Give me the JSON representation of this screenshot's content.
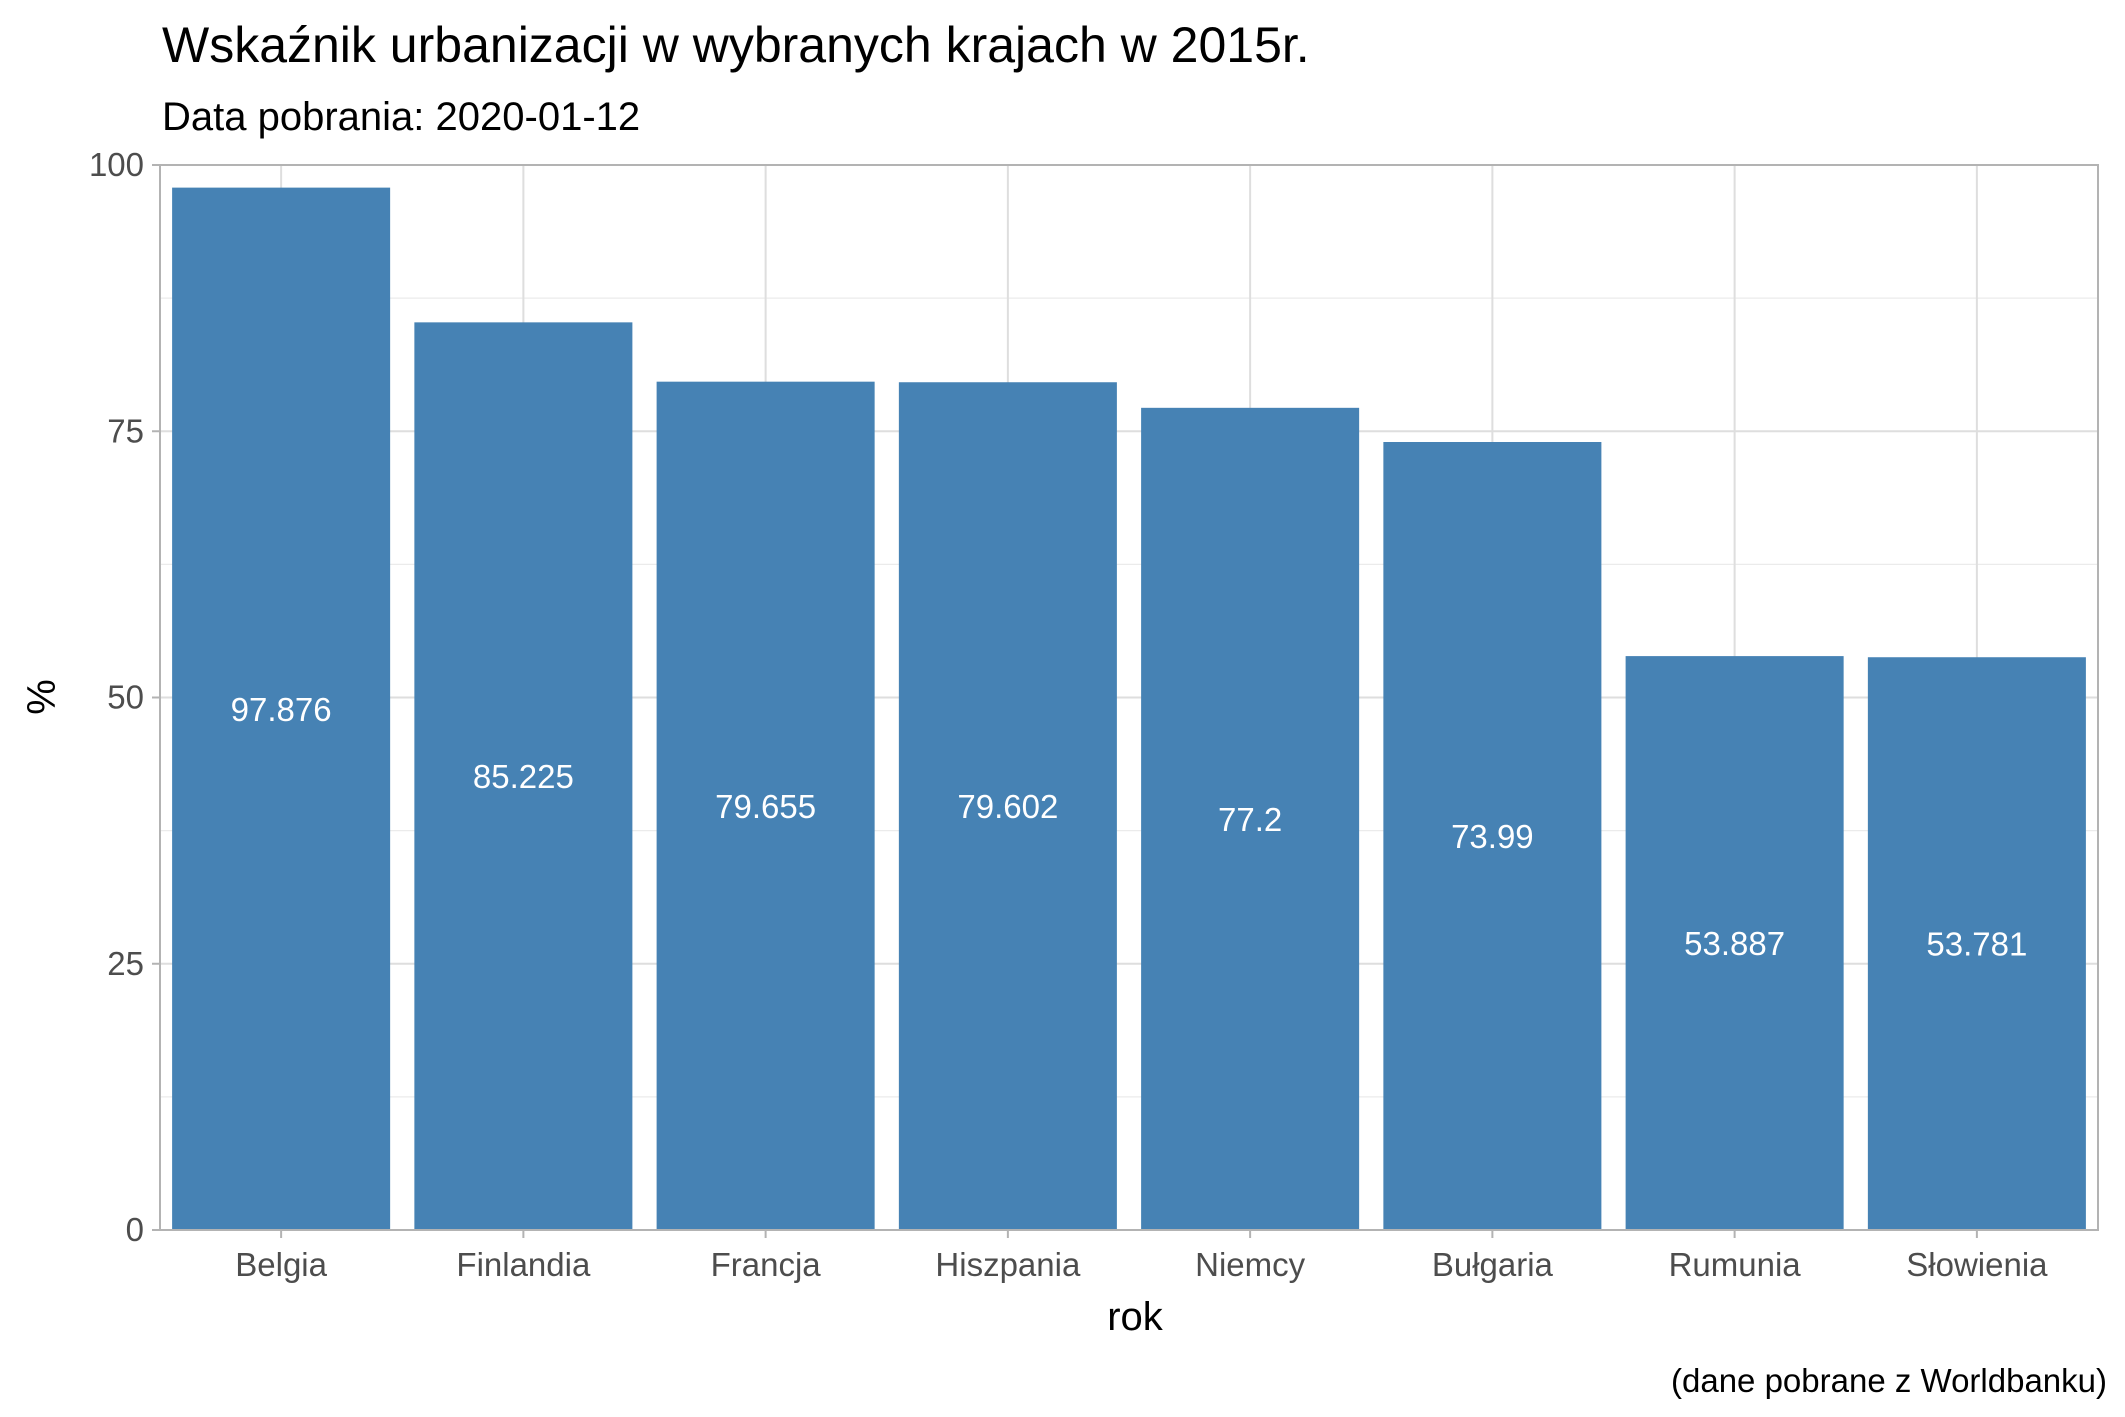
{
  "chart_data": {
    "type": "bar",
    "title": "Wskaźnik urbanizacji w wybranych krajach w 2015r.",
    "subtitle": "Data pobrania: 2020-01-12",
    "xlabel": "rok",
    "ylabel": "%",
    "caption": "(dane pobrane z Worldbanku)",
    "categories": [
      "Belgia",
      "Finlandia",
      "Francja",
      "Hiszpania",
      "Niemcy",
      "Bułgaria",
      "Rumunia",
      "Słowienia"
    ],
    "values": [
      97.876,
      85.225,
      79.655,
      79.602,
      77.2,
      73.99,
      53.887,
      53.781
    ],
    "data_labels": [
      "97.876",
      "85.225",
      "79.655",
      "79.602",
      "77.2",
      "73.99",
      "53.887",
      "53.781"
    ],
    "ylim": [
      0,
      100
    ],
    "yticks": [
      0,
      25,
      50,
      75,
      100
    ],
    "ytick_labels": [
      "0",
      "25",
      "50",
      "75",
      "100"
    ],
    "grid": true,
    "legend": "none",
    "bar_color": "#4682b4"
  }
}
